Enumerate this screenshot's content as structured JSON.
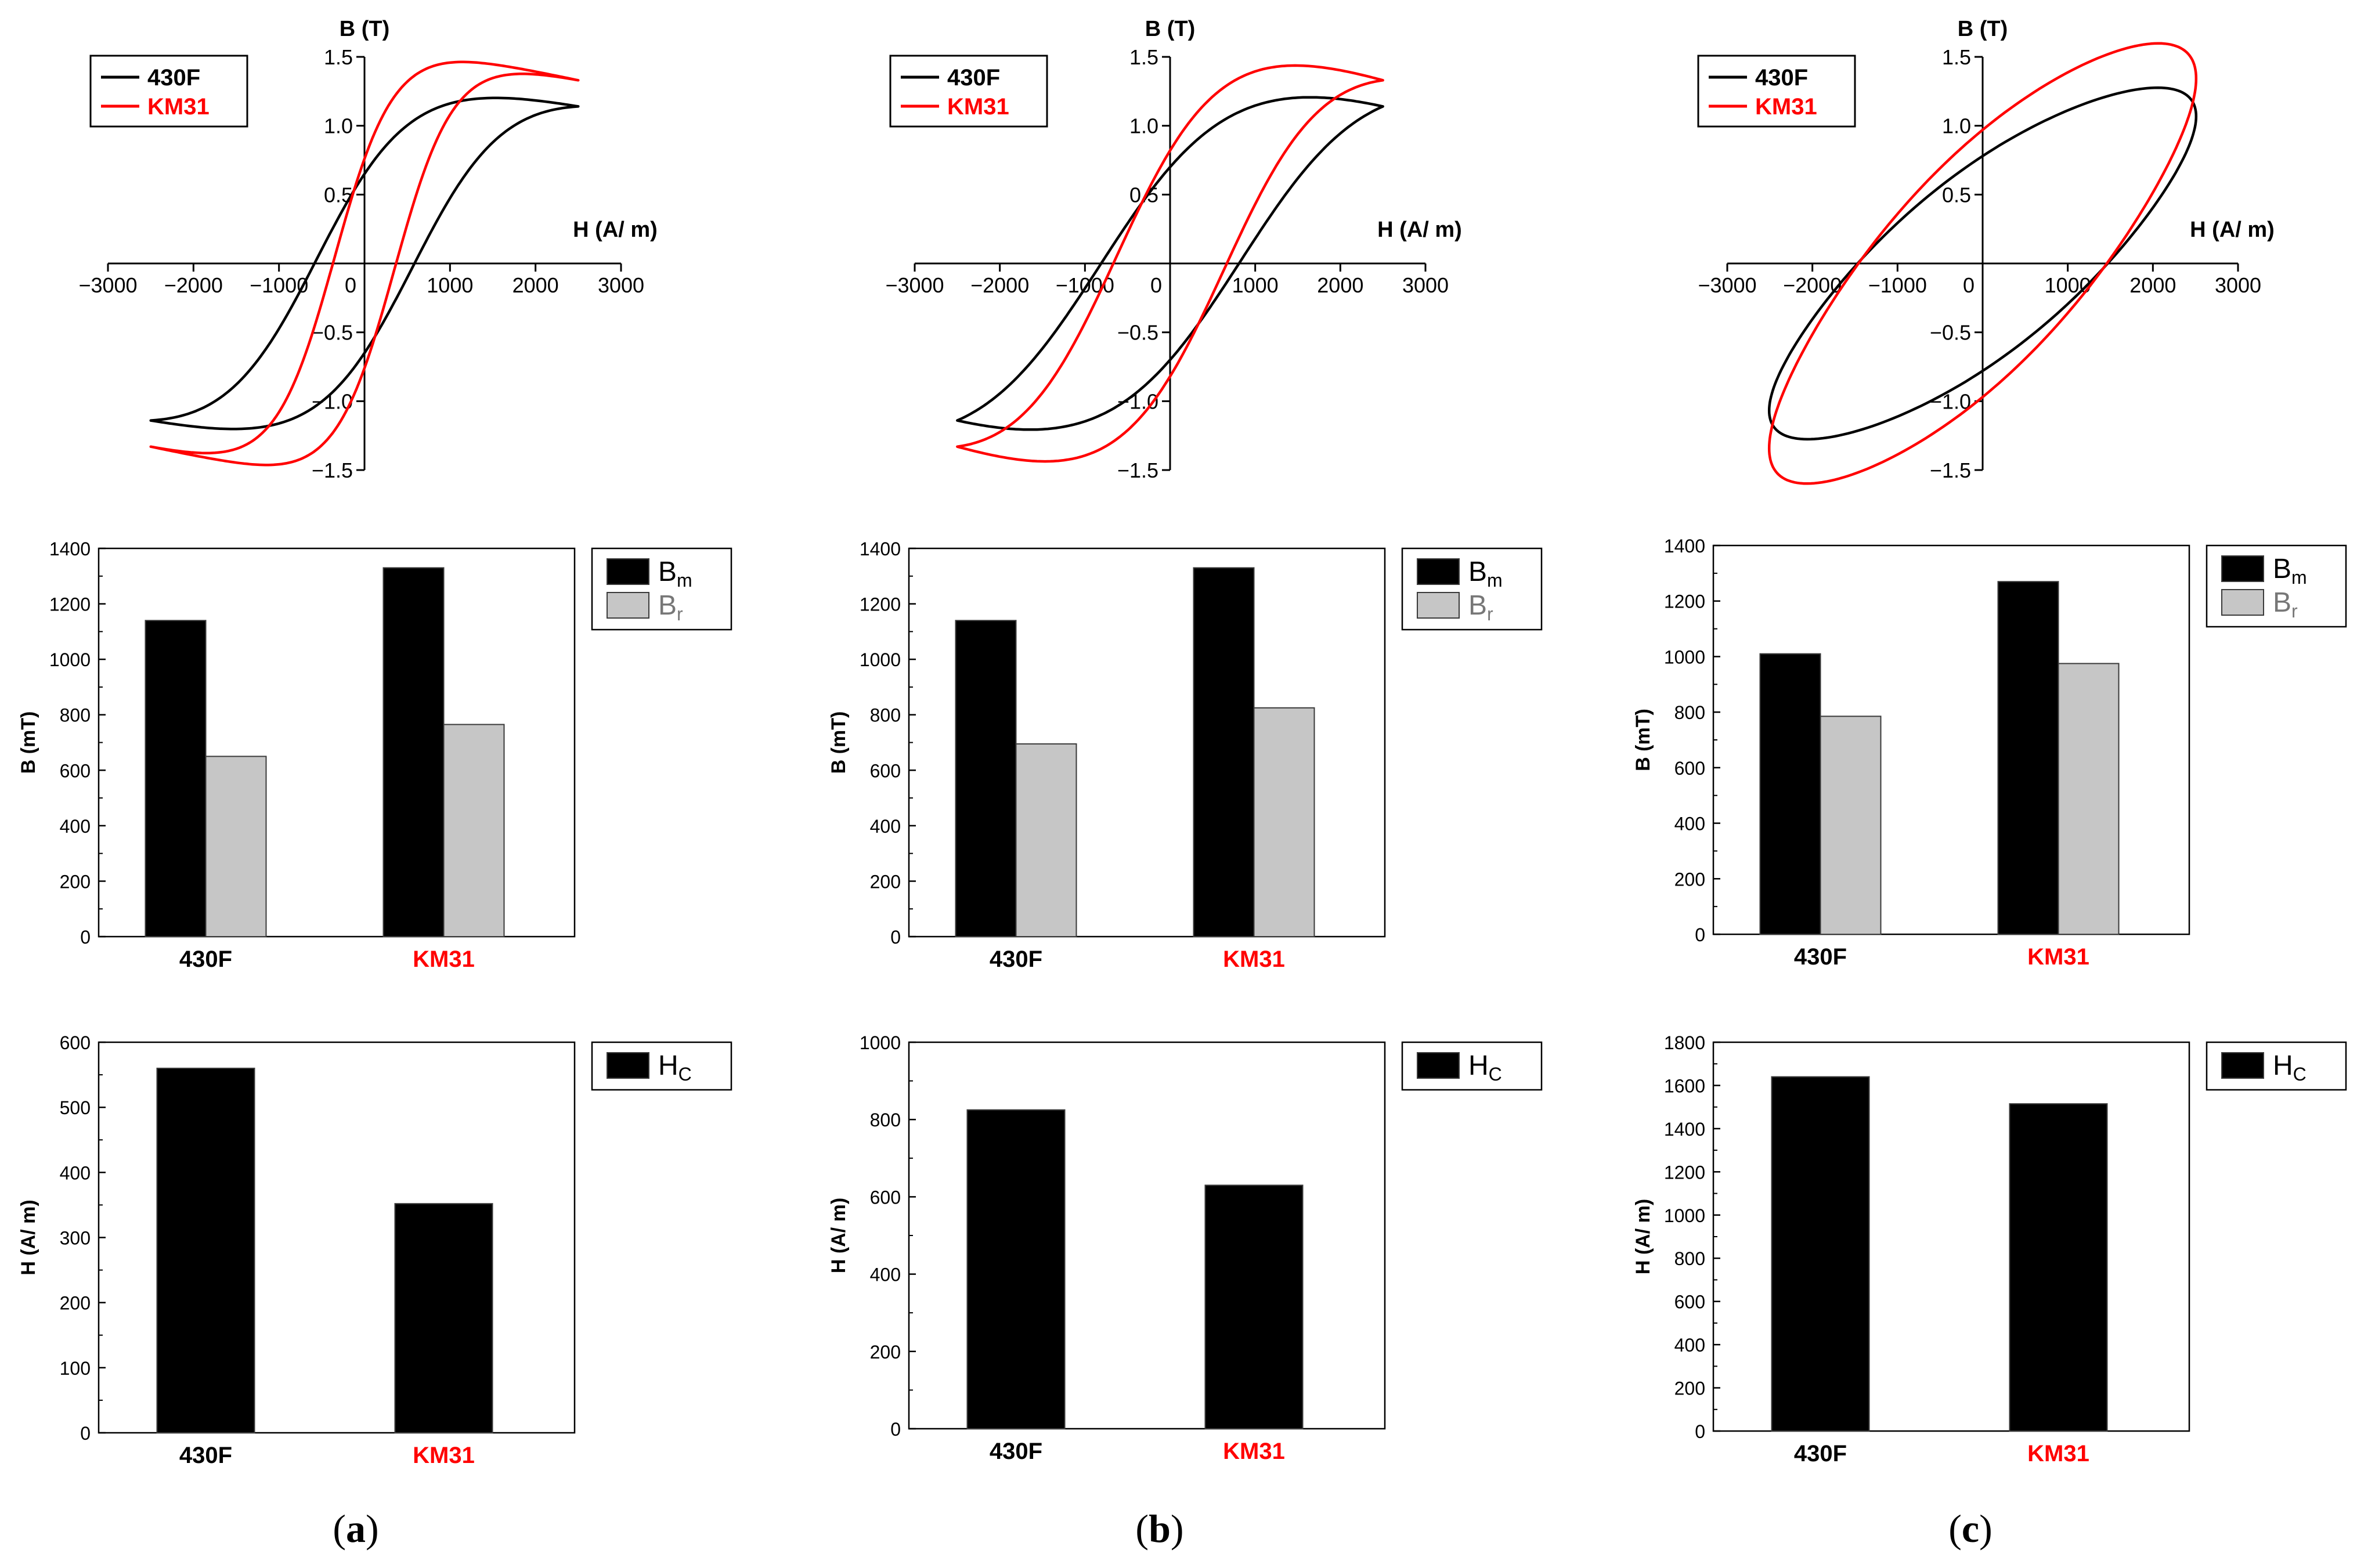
{
  "colors": {
    "series_430F": "#000000",
    "series_KM31": "#ff0000",
    "bar_Bm": "#000000",
    "bar_Br": "#c6c6c6",
    "bar_Hc": "#000000"
  },
  "chart_data": [
    {
      "id": "a-loop",
      "type": "line",
      "panel": "a",
      "title": "",
      "xlabel": "H (A/ m)",
      "ylabel": "B (T)",
      "xlim": [
        -3000,
        3000
      ],
      "ylim": [
        -1.5,
        1.5
      ],
      "xticks": [
        "−3000",
        "−2000",
        "−1000",
        "0",
        "1000",
        "2000",
        "3000"
      ],
      "yticks": [
        "−1.5",
        "−1.0",
        "−0.5",
        "0.5",
        "1.0",
        "1.5"
      ],
      "legend": [
        {
          "name": "430F",
          "color": "#000000"
        },
        {
          "name": "KM31",
          "color": "#ff0000"
        }
      ],
      "legend_position": "top-left",
      "series": [
        {
          "name": "430F",
          "color": "#000000",
          "Hm": 2500,
          "Bm": 1.14,
          "Br": 0.65,
          "Hc": 560,
          "shape": 0.9
        },
        {
          "name": "KM31",
          "color": "#ff0000",
          "Hm": 2500,
          "Bm": 1.33,
          "Br": 0.76,
          "Hc": 350,
          "shape": 0.9
        }
      ]
    },
    {
      "id": "b-loop",
      "type": "line",
      "panel": "b",
      "title": "",
      "xlabel": "H (A/ m)",
      "ylabel": "B (T)",
      "xlim": [
        -3000,
        3000
      ],
      "ylim": [
        -1.5,
        1.5
      ],
      "xticks": [
        "−3000",
        "−2000",
        "−1000",
        "0",
        "1000",
        "2000",
        "3000"
      ],
      "yticks": [
        "−1.5",
        "−1.0",
        "−0.5",
        "0.5",
        "1.0",
        "1.5"
      ],
      "legend": [
        {
          "name": "430F",
          "color": "#000000"
        },
        {
          "name": "KM31",
          "color": "#ff0000"
        }
      ],
      "legend_position": "top-left",
      "series": [
        {
          "name": "430F",
          "color": "#000000",
          "Hm": 2500,
          "Bm": 1.14,
          "Br": 0.7,
          "Hc": 825,
          "shape": 0.9
        },
        {
          "name": "KM31",
          "color": "#ff0000",
          "Hm": 2500,
          "Bm": 1.33,
          "Br": 0.82,
          "Hc": 630,
          "shape": 0.9
        }
      ]
    },
    {
      "id": "c-loop",
      "type": "line",
      "panel": "c",
      "title": "",
      "xlabel": "H (A/ m)",
      "ylabel": "B (T)",
      "xlim": [
        -3000,
        3000
      ],
      "ylim": [
        -1.5,
        1.5
      ],
      "xticks": [
        "−3000",
        "−2000",
        "−1000",
        "0",
        "1000",
        "2000",
        "3000"
      ],
      "yticks": [
        "−1.5",
        "−1.0",
        "−0.5",
        "0.5",
        "1.0",
        "1.5"
      ],
      "legend": [
        {
          "name": "430F",
          "color": "#000000"
        },
        {
          "name": "KM31",
          "color": "#ff0000"
        }
      ],
      "legend_position": "top-left",
      "series": [
        {
          "name": "430F",
          "color": "#000000",
          "Hm": 2500,
          "Bm": 1.01,
          "Br": 0.78,
          "Hc": 1640,
          "shape": 0
        },
        {
          "name": "KM31",
          "color": "#ff0000",
          "Hm": 2500,
          "Bm": 1.27,
          "Br": 0.97,
          "Hc": 1510,
          "shape": 0
        }
      ]
    },
    {
      "id": "a-b",
      "type": "bar",
      "panel": "a",
      "title": "",
      "xlabel": "",
      "ylabel": "B (mT)",
      "ylim": [
        0,
        1400
      ],
      "yticks": [
        "0",
        "200",
        "400",
        "600",
        "800",
        "1000",
        "1200",
        "1400"
      ],
      "categories": [
        "430F",
        "KM31"
      ],
      "category_colors": [
        "#000000",
        "#ff0000"
      ],
      "series": [
        {
          "name": "Bm",
          "symbol": "B",
          "sub": "m",
          "color": "#000000",
          "values": [
            1140,
            1330
          ]
        },
        {
          "name": "Br",
          "symbol": "B",
          "sub": "r",
          "color": "#c6c6c6",
          "values": [
            650,
            765
          ]
        }
      ],
      "legend_position": "top-right"
    },
    {
      "id": "b-b",
      "type": "bar",
      "panel": "b",
      "title": "",
      "xlabel": "",
      "ylabel": "B (mT)",
      "ylim": [
        0,
        1400
      ],
      "yticks": [
        "0",
        "200",
        "400",
        "600",
        "800",
        "1000",
        "1200",
        "1400"
      ],
      "categories": [
        "430F",
        "KM31"
      ],
      "category_colors": [
        "#000000",
        "#ff0000"
      ],
      "series": [
        {
          "name": "Bm",
          "symbol": "B",
          "sub": "m",
          "color": "#000000",
          "values": [
            1140,
            1330
          ]
        },
        {
          "name": "Br",
          "symbol": "B",
          "sub": "r",
          "color": "#c6c6c6",
          "values": [
            695,
            825
          ]
        }
      ],
      "legend_position": "top-right"
    },
    {
      "id": "c-b",
      "type": "bar",
      "panel": "c",
      "title": "",
      "xlabel": "",
      "ylabel": "B (mT)",
      "ylim": [
        0,
        1400
      ],
      "yticks": [
        "0",
        "200",
        "400",
        "600",
        "800",
        "1000",
        "1200",
        "1400"
      ],
      "categories": [
        "430F",
        "KM31"
      ],
      "category_colors": [
        "#000000",
        "#ff0000"
      ],
      "series": [
        {
          "name": "Bm",
          "symbol": "B",
          "sub": "m",
          "color": "#000000",
          "values": [
            1010,
            1270
          ]
        },
        {
          "name": "Br",
          "symbol": "B",
          "sub": "r",
          "color": "#c6c6c6",
          "values": [
            785,
            975
          ]
        }
      ],
      "legend_position": "top-right"
    },
    {
      "id": "a-h",
      "type": "bar",
      "panel": "a",
      "title": "",
      "xlabel": "",
      "ylabel": "H (A/ m)",
      "ylim": [
        0,
        600
      ],
      "yticks": [
        "0",
        "100",
        "200",
        "300",
        "400",
        "500",
        "600"
      ],
      "categories": [
        "430F",
        "KM31"
      ],
      "category_colors": [
        "#000000",
        "#ff0000"
      ],
      "series": [
        {
          "name": "Hc",
          "symbol": "H",
          "sub": "C",
          "color": "#000000",
          "values": [
            560,
            352
          ]
        }
      ],
      "legend_position": "top-right"
    },
    {
      "id": "b-h",
      "type": "bar",
      "panel": "b",
      "title": "",
      "xlabel": "",
      "ylabel": "H (A/ m)",
      "ylim": [
        0,
        1000
      ],
      "yticks": [
        "0",
        "200",
        "400",
        "600",
        "800",
        "1000"
      ],
      "categories": [
        "430F",
        "KM31"
      ],
      "category_colors": [
        "#000000",
        "#ff0000"
      ],
      "series": [
        {
          "name": "Hc",
          "symbol": "H",
          "sub": "C",
          "color": "#000000",
          "values": [
            825,
            630
          ]
        }
      ],
      "legend_position": "top-right"
    },
    {
      "id": "c-h",
      "type": "bar",
      "panel": "c",
      "title": "",
      "xlabel": "",
      "ylabel": "H (A/ m)",
      "ylim": [
        0,
        1800
      ],
      "yticks": [
        "0",
        "200",
        "400",
        "600",
        "800",
        "1000",
        "1200",
        "1400",
        "1600",
        "1800"
      ],
      "categories": [
        "430F",
        "KM31"
      ],
      "category_colors": [
        "#000000",
        "#ff0000"
      ],
      "series": [
        {
          "name": "Hc",
          "symbol": "H",
          "sub": "C",
          "color": "#000000",
          "values": [
            1640,
            1515
          ]
        }
      ],
      "legend_position": "top-right"
    }
  ],
  "panel_labels": {
    "a": {
      "open": "(",
      "letter": "a",
      "close": ")"
    },
    "b": {
      "open": "(",
      "letter": "b",
      "close": ")"
    },
    "c": {
      "open": "(",
      "letter": "c",
      "close": ")"
    }
  }
}
